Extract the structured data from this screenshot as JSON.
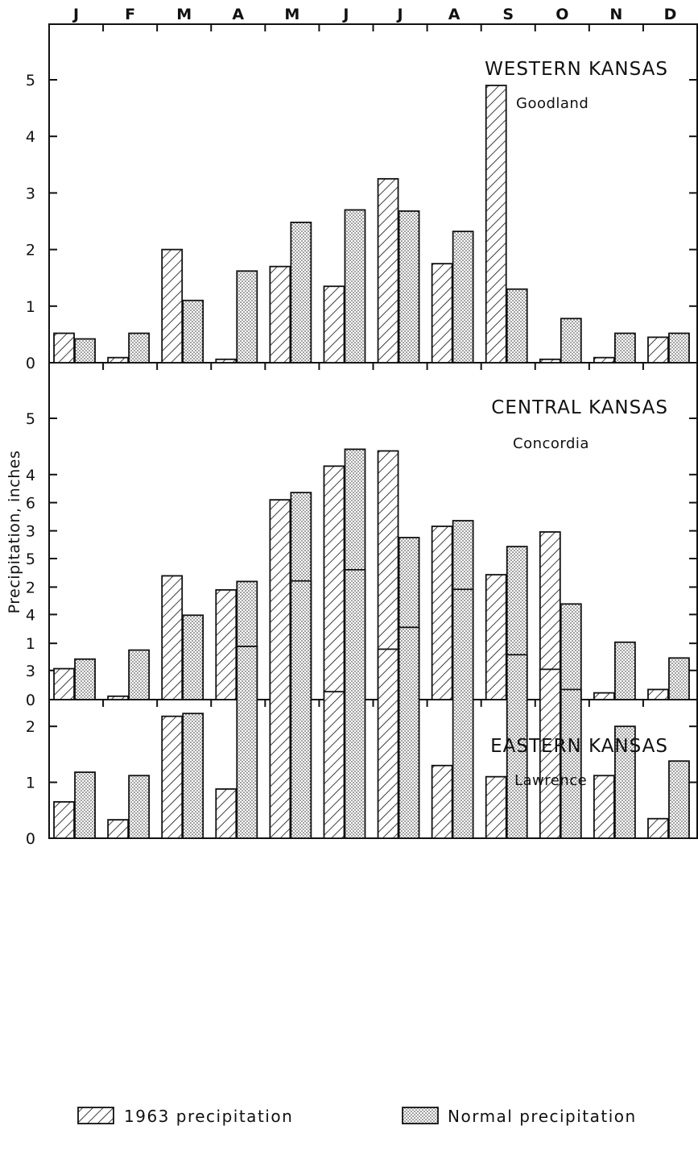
{
  "chart_data": {
    "type": "bar",
    "categories": [
      "J",
      "F",
      "M",
      "A",
      "M",
      "J",
      "J",
      "A",
      "S",
      "O",
      "N",
      "D"
    ],
    "ylabel": "Precipitation, inches",
    "legend": {
      "placement": "bottom",
      "entries": [
        "1963 precipitation",
        "Normal precipitation"
      ]
    },
    "panels": [
      {
        "title": "WESTERN KANSAS",
        "station": "Goodland",
        "ylim": [
          0,
          6
        ],
        "yticks": [
          0,
          1,
          2,
          3,
          4,
          5
        ],
        "series": [
          {
            "name": "1963 precipitation",
            "values": [
              0.52,
              0.09,
              2.0,
              0.06,
              1.7,
              1.35,
              3.25,
              1.75,
              4.9,
              0.06,
              0.09,
              0.45
            ]
          },
          {
            "name": "Normal precipitation",
            "values": [
              0.42,
              0.52,
              1.1,
              1.62,
              2.48,
              2.7,
              2.68,
              2.32,
              1.3,
              0.78,
              0.52,
              0.52
            ]
          }
        ]
      },
      {
        "title": "CENTRAL KANSAS",
        "station": "Concordia",
        "ylim": [
          0,
          6
        ],
        "yticks": [
          0,
          1,
          2,
          3,
          4,
          5
        ],
        "series": [
          {
            "name": "1963 precipitation",
            "values": [
              0.55,
              0.06,
              2.2,
              1.95,
              1.45,
              4.15,
              4.42,
              3.08,
              2.22,
              2.98,
              0.12,
              0.18
            ]
          },
          {
            "name": "Normal precipitation",
            "values": [
              0.72,
              0.88,
              1.5,
              2.1,
              3.68,
              4.45,
              2.88,
              3.18,
              2.72,
              1.7,
              1.02,
              0.74
            ]
          }
        ]
      },
      {
        "title": "EASTERN KANSAS",
        "station": "Lawrence",
        "ylim": [
          0,
          7
        ],
        "yticks": [
          0,
          1,
          2,
          3,
          4,
          5,
          6
        ],
        "series": [
          {
            "name": "1963 precipitation",
            "values": [
              0.65,
              0.33,
              2.18,
              0.88,
              6.05,
              2.62,
              3.38,
              1.3,
              1.1,
              3.02,
              1.12,
              0.35
            ]
          },
          {
            "name": "Normal precipitation",
            "values": [
              1.18,
              1.12,
              2.23,
              3.43,
              4.6,
              4.8,
              3.77,
              4.45,
              3.28,
              2.66,
              2.0,
              1.38
            ]
          }
        ]
      }
    ]
  }
}
